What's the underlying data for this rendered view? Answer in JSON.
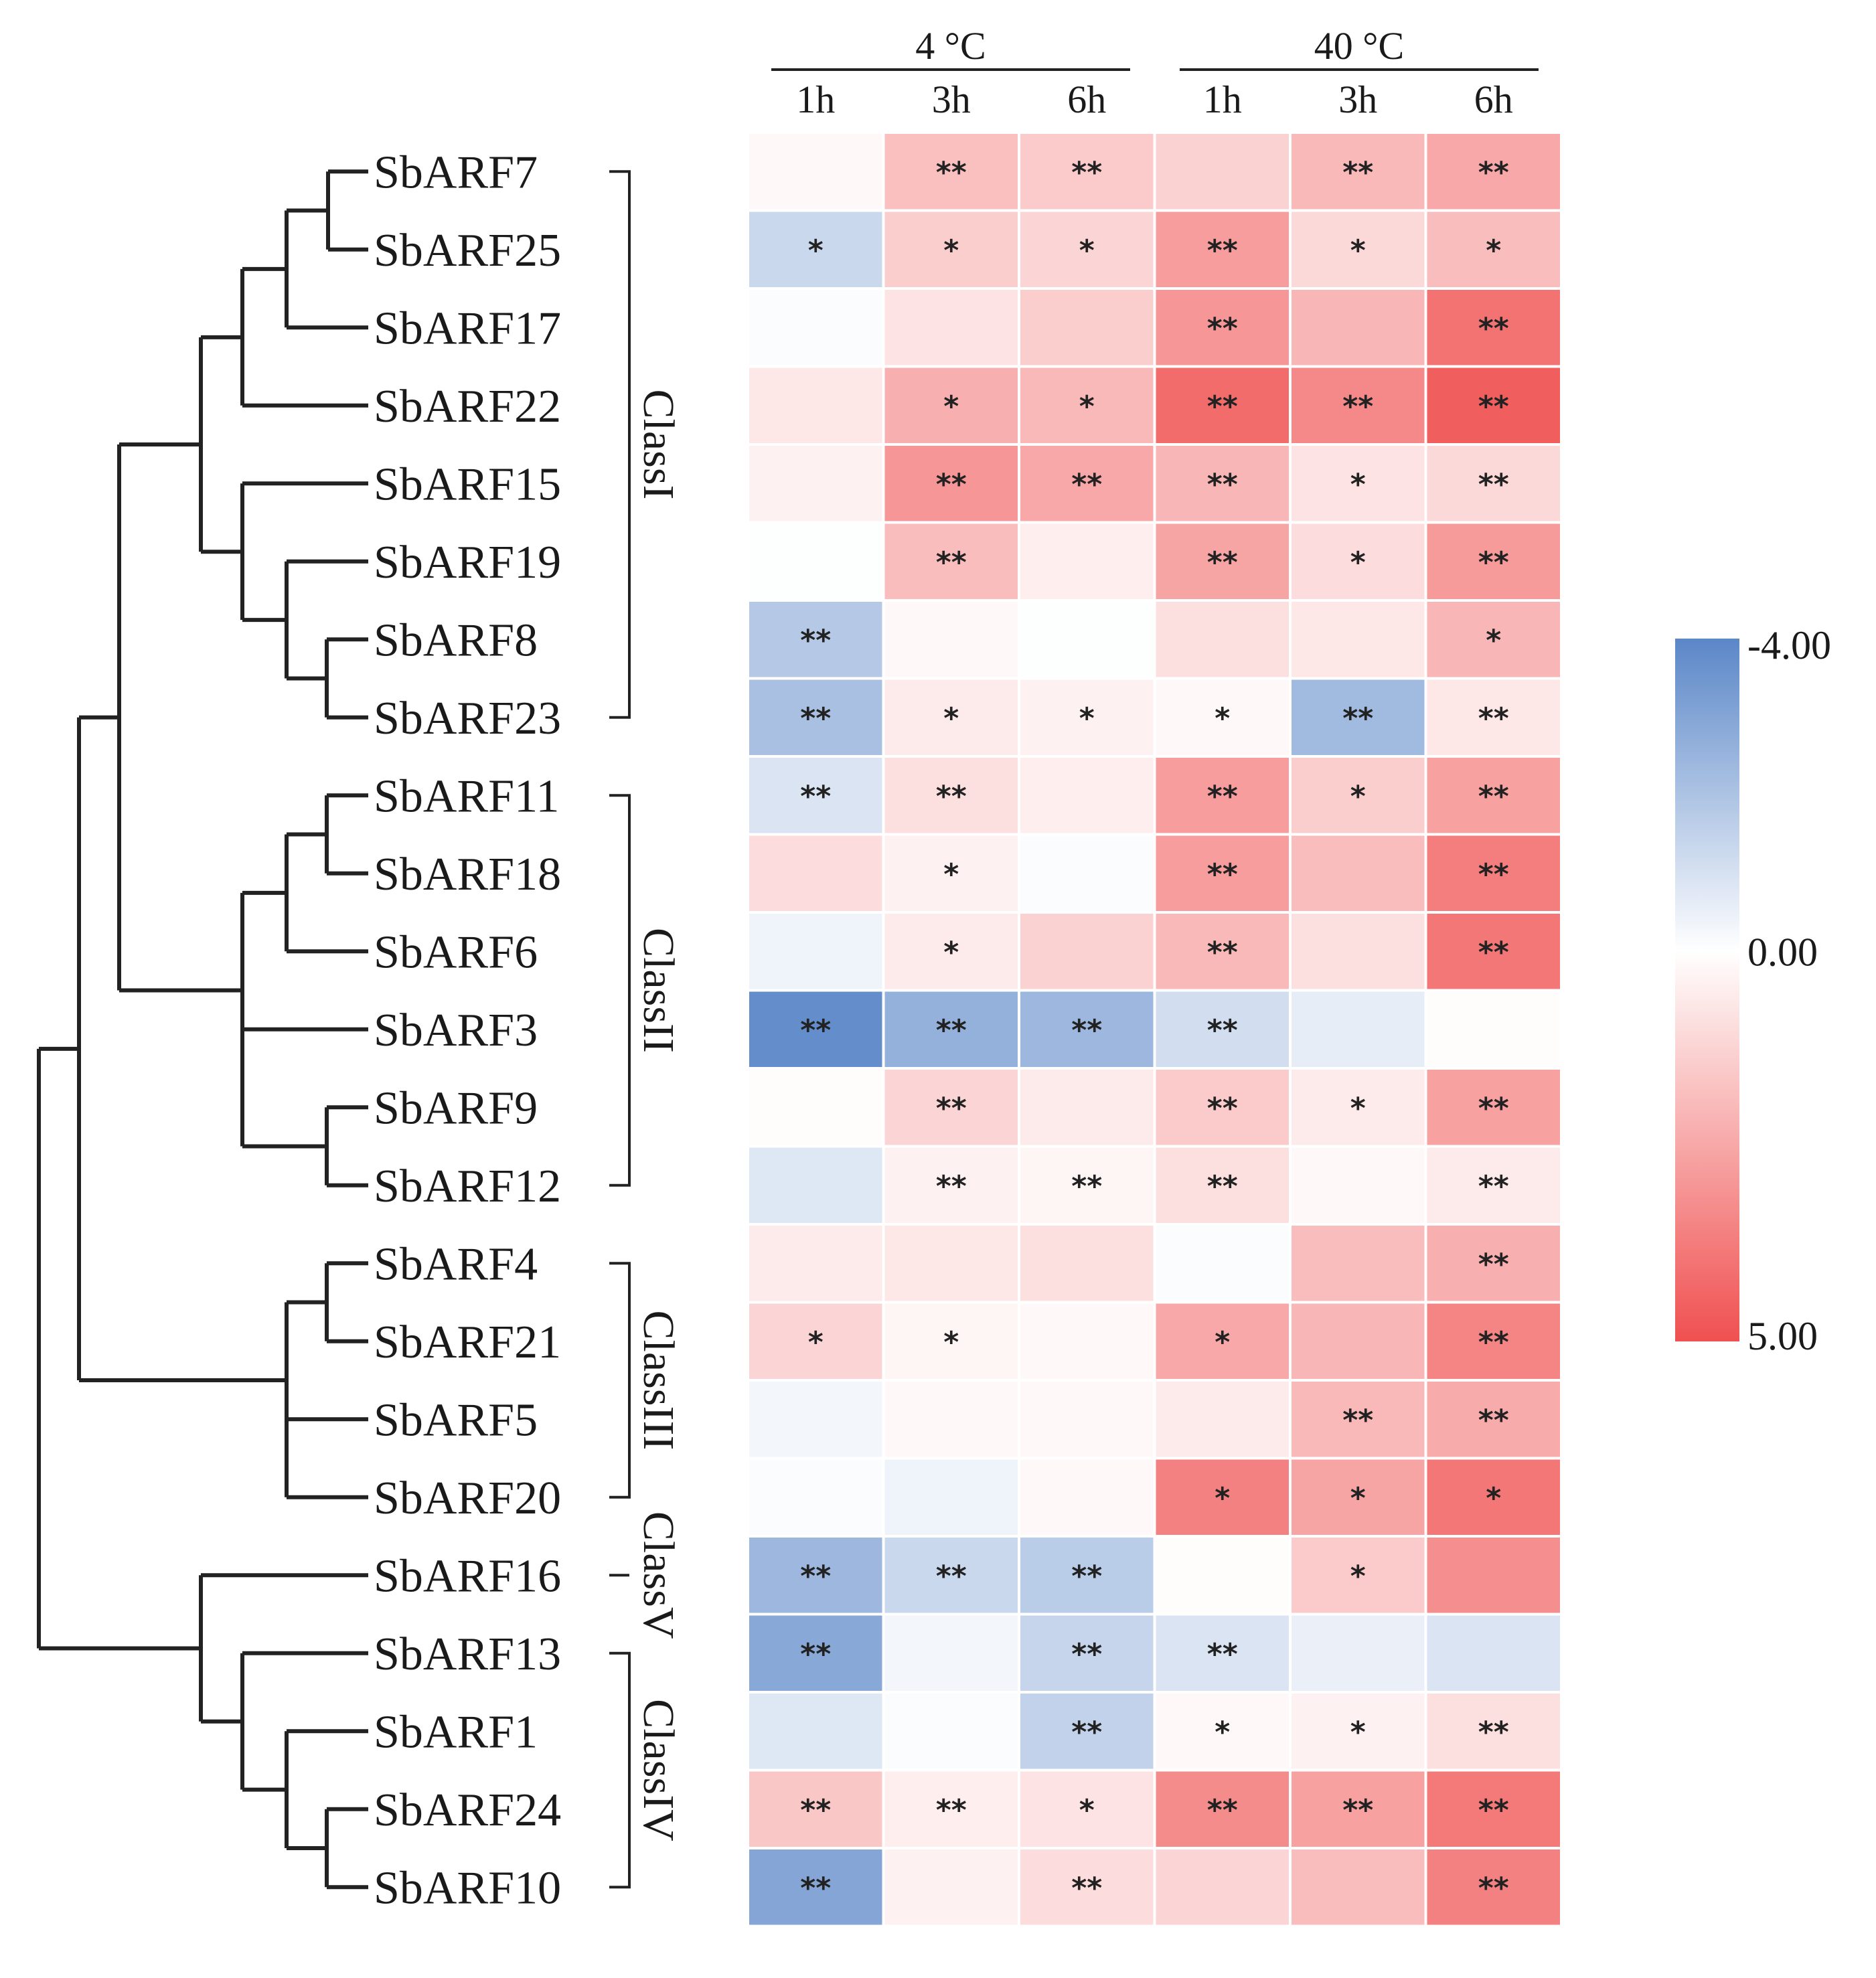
{
  "chart_data": {
    "type": "heatmap",
    "title": "",
    "group_labels": [
      "4 °C",
      "40 °C"
    ],
    "column_labels": [
      "1h",
      "3h",
      "6h",
      "1h",
      "3h",
      "6h"
    ],
    "rows": [
      "SbARF7",
      "SbARF25",
      "SbARF17",
      "SbARF22",
      "SbARF15",
      "SbARF19",
      "SbARF8",
      "SbARF23",
      "SbARF11",
      "SbARF18",
      "SbARF6",
      "SbARF3",
      "SbARF9",
      "SbARF12",
      "SbARF4",
      "SbARF21",
      "SbARF5",
      "SbARF20",
      "SbARF16",
      "SbARF13",
      "SbARF1",
      "SbARF24",
      "SbARF10"
    ],
    "values": [
      [
        0.2,
        1.8,
        1.5,
        1.3,
        2.0,
        2.5
      ],
      [
        -1.3,
        1.4,
        1.2,
        2.8,
        1.1,
        1.9
      ],
      [
        -0.1,
        0.8,
        1.4,
        3.0,
        2.1,
        4.0
      ],
      [
        0.7,
        2.3,
        2.0,
        4.2,
        3.4,
        4.6
      ],
      [
        0.4,
        3.0,
        2.5,
        2.1,
        0.8,
        1.1
      ],
      [
        -0.05,
        1.9,
        0.5,
        2.6,
        1.0,
        2.9
      ],
      [
        -1.8,
        0.2,
        -0.05,
        0.9,
        0.7,
        2.1
      ],
      [
        -2.1,
        0.6,
        0.4,
        0.2,
        -2.3,
        0.7
      ],
      [
        -0.9,
        0.9,
        0.5,
        2.8,
        1.4,
        2.7
      ],
      [
        1.0,
        0.4,
        -0.1,
        2.8,
        1.9,
        3.7
      ],
      [
        -0.4,
        0.6,
        1.3,
        2.0,
        0.9,
        3.9
      ],
      [
        -3.8,
        -2.6,
        -2.4,
        -1.1,
        -0.6,
        0.1
      ],
      [
        0.1,
        1.2,
        0.6,
        1.5,
        0.6,
        2.7
      ],
      [
        -0.8,
        0.4,
        0.3,
        0.9,
        0.2,
        0.6
      ],
      [
        0.6,
        0.7,
        0.9,
        -0.1,
        1.9,
        2.3
      ],
      [
        1.2,
        0.3,
        0.2,
        2.5,
        2.1,
        3.5
      ],
      [
        -0.3,
        0.2,
        0.2,
        0.6,
        2.0,
        2.4
      ],
      [
        -0.1,
        -0.4,
        0.2,
        3.6,
        2.6,
        3.9
      ],
      [
        -2.4,
        -1.3,
        -1.7,
        0.1,
        1.5,
        3.2
      ],
      [
        -2.9,
        -0.3,
        -1.4,
        -0.9,
        -0.5,
        -0.9
      ],
      [
        -0.8,
        -0.1,
        -1.5,
        0.2,
        0.4,
        0.9
      ],
      [
        1.6,
        0.5,
        0.8,
        3.3,
        2.7,
        3.8
      ],
      [
        -3.0,
        0.4,
        1.0,
        1.2,
        1.9,
        3.6
      ]
    ],
    "significance": [
      [
        "",
        "**",
        "**",
        "",
        "**",
        "**"
      ],
      [
        "*",
        "*",
        "*",
        "**",
        "*",
        "*"
      ],
      [
        "",
        "",
        "",
        "**",
        "",
        "**"
      ],
      [
        "",
        "*",
        "*",
        "**",
        "**",
        "**"
      ],
      [
        "",
        "**",
        "**",
        "**",
        "*",
        "**"
      ],
      [
        "",
        "**",
        "",
        "**",
        "*",
        "**"
      ],
      [
        "**",
        "",
        "",
        "",
        "",
        "*"
      ],
      [
        "**",
        "*",
        "*",
        "*",
        "**",
        "**"
      ],
      [
        "**",
        "**",
        "",
        "**",
        "*",
        "**"
      ],
      [
        "",
        "*",
        "",
        "**",
        "",
        "**"
      ],
      [
        "",
        "*",
        "",
        "**",
        "",
        "**"
      ],
      [
        "**",
        "**",
        "**",
        "**",
        "",
        ""
      ],
      [
        "",
        "**",
        "",
        "**",
        "*",
        "**"
      ],
      [
        "",
        "**",
        "**",
        "**",
        "",
        "**"
      ],
      [
        "",
        "",
        "",
        "",
        "",
        "**"
      ],
      [
        "*",
        "*",
        "",
        "*",
        "",
        "**"
      ],
      [
        "",
        "",
        "",
        "",
        "**",
        "**"
      ],
      [
        "",
        "",
        "",
        "*",
        "*",
        "*"
      ],
      [
        "**",
        "**",
        "**",
        "",
        "*",
        ""
      ],
      [
        "**",
        "",
        "**",
        "**",
        "",
        ""
      ],
      [
        "",
        "",
        "**",
        "*",
        "*",
        "**"
      ],
      [
        "**",
        "**",
        "*",
        "**",
        "**",
        "**"
      ],
      [
        "**",
        "",
        "**",
        "",
        "",
        "**"
      ]
    ],
    "classes": [
      {
        "label": "ClassI",
        "first_row": 0,
        "last_row": 7
      },
      {
        "label": "ClassII",
        "first_row": 8,
        "last_row": 13
      },
      {
        "label": "ClassIII",
        "first_row": 14,
        "last_row": 17
      },
      {
        "label": "ClassV",
        "first_row": 18,
        "last_row": 18
      },
      {
        "label": "ClassIV",
        "first_row": 19,
        "last_row": 22
      }
    ],
    "color_scale": {
      "min": -4.0,
      "mid": 0.0,
      "max": 5.0,
      "min_label": "-4.00",
      "mid_label": "0.00",
      "max_label": "5.00",
      "min_color": "#5b87c8",
      "mid_color": "#ffffff",
      "max_color": "#f05050"
    }
  }
}
